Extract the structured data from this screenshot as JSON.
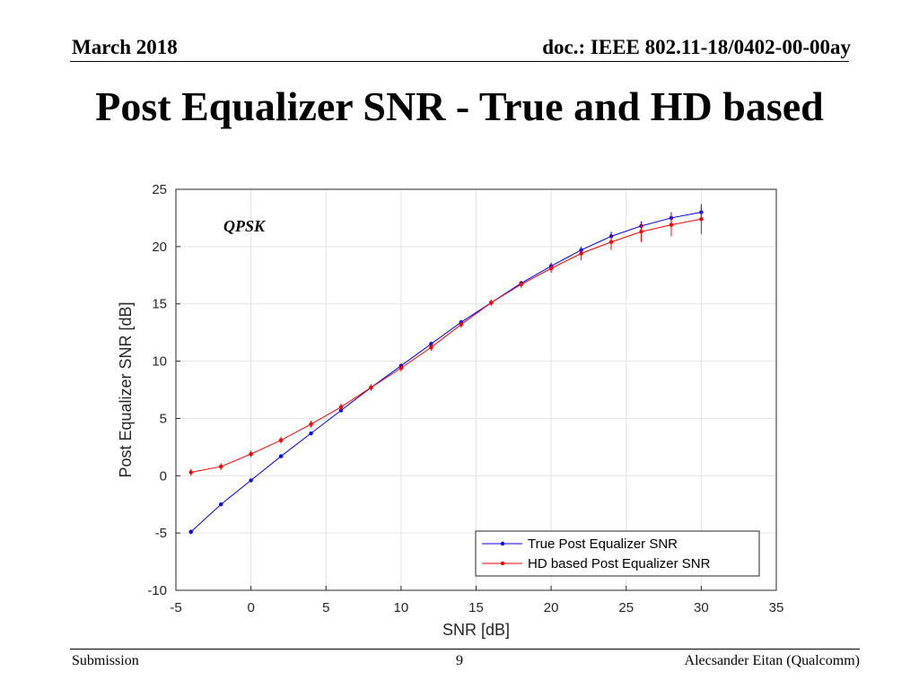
{
  "header": {
    "date": "March 2018",
    "doc": "doc.: IEEE 802.11-18/0402-00-00ay"
  },
  "slide_title": "Post Equalizer SNR - True and HD based",
  "footer": {
    "left": "Submission",
    "page": "9",
    "right": "Alecsander Eitan (Qualcomm)"
  },
  "chart_data": {
    "type": "line",
    "xlabel": "SNR [dB]",
    "ylabel": "Post Equalizer SNR [dB]",
    "xlim": [
      -5,
      35
    ],
    "ylim": [
      -10,
      25
    ],
    "xticks": [
      -5,
      0,
      5,
      10,
      15,
      20,
      25,
      30,
      35
    ],
    "yticks": [
      -10,
      -5,
      0,
      5,
      10,
      15,
      20,
      25
    ],
    "grid": true,
    "legend_position": "bottom-right",
    "annotation": "QPSK",
    "x": [
      -4,
      -2,
      0,
      2,
      4,
      6,
      8,
      10,
      12,
      14,
      16,
      18,
      20,
      22,
      24,
      26,
      28,
      30
    ],
    "series": [
      {
        "name": "True Post Equalizer SNR",
        "color": "#0000ff",
        "values": [
          -4.9,
          -2.5,
          -0.4,
          1.7,
          3.7,
          5.7,
          7.7,
          9.6,
          11.5,
          13.4,
          15.1,
          16.8,
          18.3,
          19.7,
          20.9,
          21.8,
          22.5,
          23.0
        ],
        "err_low": [
          -5.1,
          -2.6,
          -0.5,
          1.6,
          3.6,
          5.6,
          7.5,
          9.4,
          11.3,
          13.2,
          14.9,
          16.6,
          18.0,
          19.3,
          20.4,
          21.3,
          21.9,
          22.4
        ],
        "err_high": [
          -4.7,
          -2.4,
          -0.3,
          1.8,
          3.8,
          5.8,
          7.9,
          9.8,
          11.7,
          13.6,
          15.3,
          17.0,
          18.6,
          20.0,
          21.3,
          22.2,
          23.0,
          23.7
        ]
      },
      {
        "name": "HD based Post Equalizer SNR",
        "color": "#ff0000",
        "values": [
          0.3,
          0.8,
          1.9,
          3.1,
          4.5,
          6.0,
          7.7,
          9.4,
          11.2,
          13.2,
          15.1,
          16.7,
          18.1,
          19.4,
          20.4,
          21.3,
          21.9,
          22.4
        ],
        "err_low": [
          0.0,
          0.5,
          1.6,
          2.8,
          4.2,
          5.7,
          7.4,
          9.1,
          10.9,
          12.9,
          14.8,
          16.4,
          17.7,
          18.8,
          19.7,
          20.4,
          20.9,
          21.1
        ],
        "err_high": [
          0.6,
          1.1,
          2.2,
          3.4,
          4.8,
          6.3,
          8.0,
          9.7,
          11.5,
          13.5,
          15.4,
          17.0,
          18.5,
          19.9,
          21.0,
          22.0,
          22.9,
          23.6
        ]
      }
    ]
  }
}
